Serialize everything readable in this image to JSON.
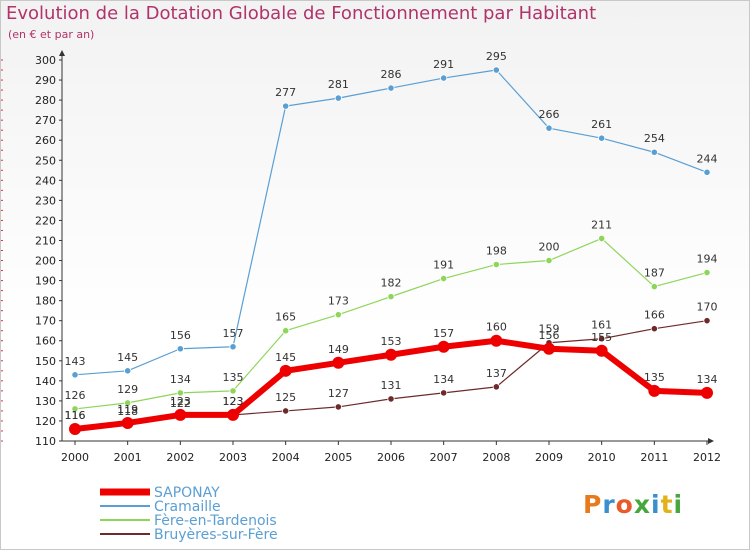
{
  "header": {
    "title": "Evolution de la Dotation Globale de Fonctionnement par Habitant",
    "subtitle": "(en € et par an)"
  },
  "logo": {
    "text": "Proxiti",
    "colors": [
      "#e87a1e",
      "#3b8fd0",
      "#e85a2a",
      "#46a83c",
      "#3b8fd0",
      "#e2b21a",
      "#46a83c"
    ]
  },
  "chart_data": {
    "type": "line",
    "title": "Evolution de la Dotation Globale de Fonctionnement par Habitant",
    "subtitle": "(en € et par an)",
    "x": [
      "2000",
      "2001",
      "2002",
      "2003",
      "2004",
      "2005",
      "2006",
      "2007",
      "2008",
      "2009",
      "2010",
      "2011",
      "2012"
    ],
    "ylim": [
      110,
      300
    ],
    "yticks": [
      110,
      120,
      130,
      140,
      150,
      160,
      170,
      180,
      190,
      200,
      210,
      220,
      230,
      240,
      250,
      260,
      270,
      280,
      290,
      300
    ],
    "grid": false,
    "legend_position": "bottom-left",
    "series": [
      {
        "name": "SAPONAY",
        "color": "#ee0000",
        "values": [
          116,
          119,
          123,
          123,
          145,
          149,
          153,
          157,
          160,
          156,
          155,
          135,
          134
        ]
      },
      {
        "name": "Cramaille",
        "color": "#5a9fd4",
        "values": [
          143,
          145,
          156,
          157,
          277,
          281,
          286,
          291,
          295,
          266,
          261,
          254,
          244
        ]
      },
      {
        "name": "Fère-en-Tardenois",
        "color": "#8ed65a",
        "values": [
          126,
          129,
          134,
          135,
          165,
          173,
          182,
          191,
          198,
          200,
          211,
          187,
          194
        ]
      },
      {
        "name": "Bruyères-sur-Fère",
        "color": "#6e2a2a",
        "values": [
          116,
          118,
          122,
          123,
          125,
          127,
          131,
          134,
          137,
          159,
          161,
          166,
          170
        ]
      }
    ]
  }
}
